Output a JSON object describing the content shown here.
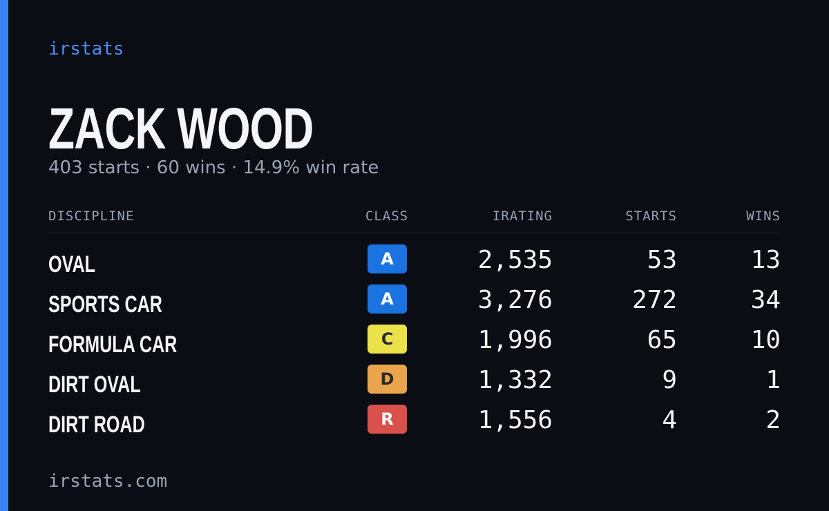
{
  "brand": "irstats",
  "driver": {
    "name": "ZACK WOOD",
    "summary": "403 starts · 60 wins · 14.9% win rate"
  },
  "table": {
    "headers": [
      "DISCIPLINE",
      "CLASS",
      "IRATING",
      "STARTS",
      "WINS"
    ],
    "rows": [
      {
        "discipline": "OVAL",
        "class": "A",
        "class_color": "#1a73e0",
        "irating": "2,535",
        "starts": "53",
        "wins": "13"
      },
      {
        "discipline": "SPORTS CAR",
        "class": "A",
        "class_color": "#1a73e0",
        "irating": "3,276",
        "starts": "272",
        "wins": "34"
      },
      {
        "discipline": "FORMULA CAR",
        "class": "C",
        "class_color": "#ebe24a",
        "irating": "1,996",
        "starts": "65",
        "wins": "10"
      },
      {
        "discipline": "DIRT OVAL",
        "class": "D",
        "class_color": "#eaa54c",
        "irating": "1,332",
        "starts": "9",
        "wins": "1"
      },
      {
        "discipline": "DIRT ROAD",
        "class": "R",
        "class_color": "#d9504c",
        "irating": "1,556",
        "starts": "4",
        "wins": "2"
      }
    ]
  },
  "footer": "irstats.com"
}
